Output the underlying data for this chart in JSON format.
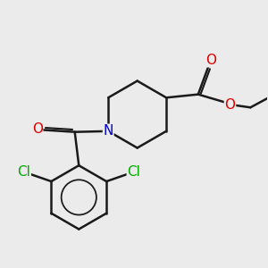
{
  "background_color": "#ebebeb",
  "bond_color": "#1a1a1a",
  "bond_width": 1.8,
  "atom_colors": {
    "O": "#dd0000",
    "N": "#0000cc",
    "Cl": "#00aa00",
    "C": "#1a1a1a"
  },
  "font_size": 11
}
